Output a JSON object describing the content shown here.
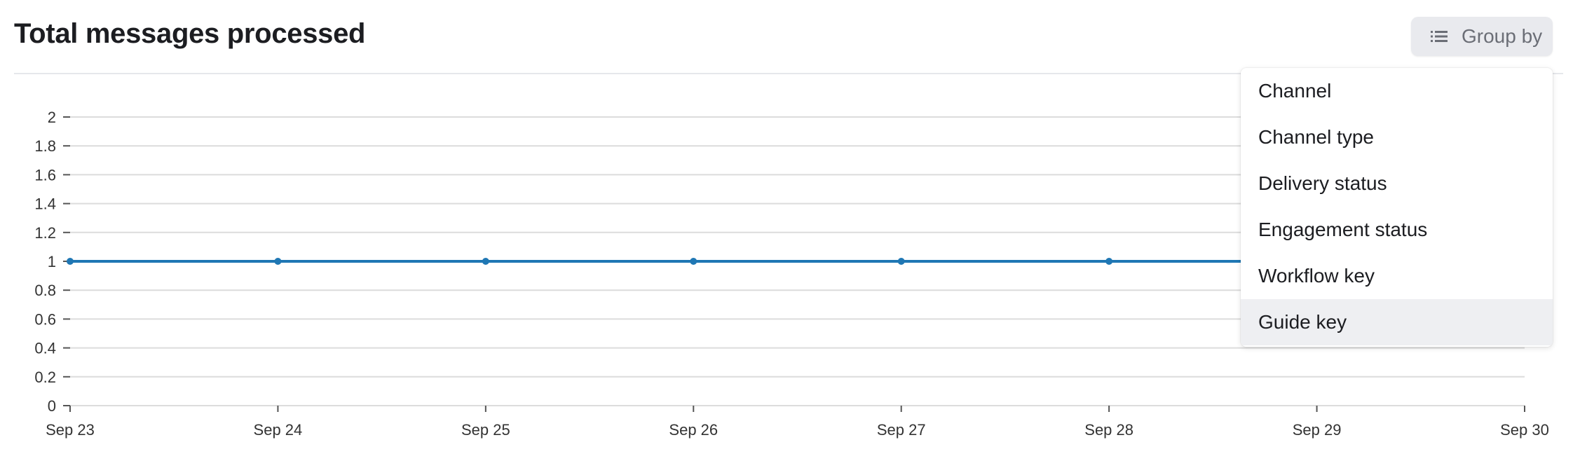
{
  "header": {
    "title": "Total messages processed"
  },
  "group_by": {
    "label": "Group by",
    "icon": "list-icon",
    "options": [
      "Channel",
      "Channel type",
      "Delivery status",
      "Engagement status",
      "Workflow key",
      "Guide key"
    ],
    "highlighted": "Guide key"
  },
  "chart_data": {
    "type": "line",
    "title": "Total messages processed",
    "categories": [
      "Sep 23",
      "Sep 24",
      "Sep 25",
      "Sep 26",
      "Sep 27",
      "Sep 28",
      "Sep 29",
      "Sep 30"
    ],
    "series": [
      {
        "values": [
          1,
          1,
          1,
          1,
          1,
          1,
          1,
          1
        ],
        "color": "#1f77b4"
      }
    ],
    "y_ticks": [
      "0",
      "0.2",
      "0.4",
      "0.6",
      "0.8",
      "1",
      "1.2",
      "1.4",
      "1.6",
      "1.8",
      "2"
    ],
    "ylim": [
      0,
      2
    ],
    "grid": true,
    "legend": "none"
  }
}
